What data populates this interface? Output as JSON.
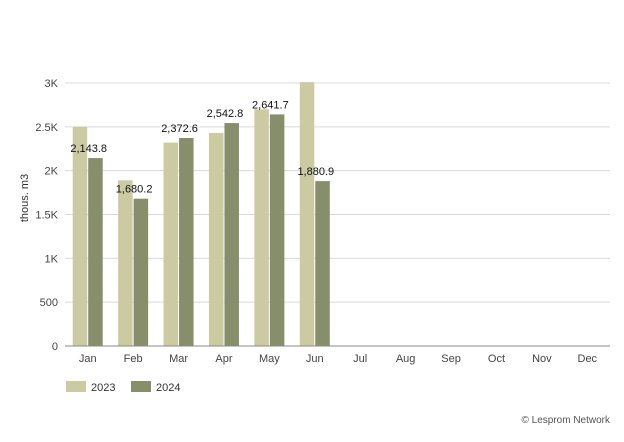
{
  "chart_data": {
    "type": "bar",
    "ylabel": "thous. m3",
    "ylim": [
      0,
      3000
    ],
    "y_ticks": [
      0,
      500,
      1000,
      1500,
      2000,
      2500,
      3000
    ],
    "y_tick_labels": [
      "0",
      "500",
      "1K",
      "1.5K",
      "2K",
      "2.5K",
      "3K"
    ],
    "categories": [
      "Jan",
      "Feb",
      "Mar",
      "Apr",
      "May",
      "Jun",
      "Jul",
      "Aug",
      "Sep",
      "Oct",
      "Nov",
      "Dec"
    ],
    "series": [
      {
        "name": "2023",
        "color": "#cbcaa3",
        "values": [
          2500,
          1890,
          2320,
          2430,
          2700,
          3010,
          null,
          null,
          null,
          null,
          null,
          null
        ]
      },
      {
        "name": "2024",
        "color": "#878e6c",
        "values": [
          2143.8,
          1680.2,
          2372.6,
          2542.8,
          2641.7,
          1880.9,
          null,
          null,
          null,
          null,
          null,
          null
        ],
        "labels": [
          "2,143.8",
          "1,680.2",
          "2,372.6",
          "2,542.8",
          "2,641.7",
          "1,880.9",
          null,
          null,
          null,
          null,
          null,
          null
        ]
      }
    ],
    "grid": true,
    "legend_position": "bottom-left"
  },
  "credit": "© Lesprom Network"
}
